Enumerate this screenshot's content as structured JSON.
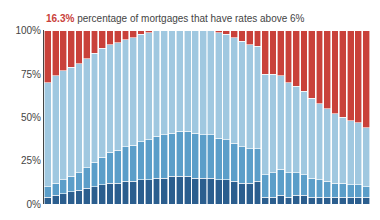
{
  "chart_data": {
    "type": "bar",
    "stacked": true,
    "grid": false,
    "tick_labels": "y",
    "annotations": [
      {
        "text": "16.3%",
        "color": "#c9413a"
      },
      {
        "text": " percentage of mortgages that have rates above 6%",
        "color": "#444444"
      }
    ],
    "categories": [
      null,
      null,
      null,
      null,
      null,
      null,
      null,
      null,
      null,
      null,
      null,
      null,
      null,
      null,
      null,
      null,
      null,
      null,
      null,
      null,
      null,
      null,
      null,
      null,
      null,
      null,
      null,
      null,
      null,
      null,
      null,
      null,
      null,
      null,
      null,
      null,
      null,
      null,
      null,
      null,
      null,
      null
    ],
    "series": [
      {
        "color": "#2b5e8e",
        "values": [
          0.04,
          0.05,
          0.06,
          0.07,
          0.08,
          0.09,
          0.1,
          0.11,
          0.12,
          0.12,
          0.13,
          0.13,
          0.14,
          0.14,
          0.15,
          0.15,
          0.16,
          0.16,
          0.16,
          0.15,
          0.15,
          0.15,
          0.14,
          0.14,
          0.13,
          0.12,
          0.12,
          0.13,
          0.04,
          0.04,
          0.05,
          0.04,
          0.05,
          0.05,
          0.04,
          0.04,
          0.04,
          0.04,
          0.04,
          0.04,
          0.04,
          0.04
        ]
      },
      {
        "color": "#5b9ec9",
        "values": [
          0.06,
          0.07,
          0.08,
          0.09,
          0.1,
          0.12,
          0.14,
          0.16,
          0.18,
          0.19,
          0.2,
          0.21,
          0.22,
          0.23,
          0.24,
          0.25,
          0.25,
          0.26,
          0.26,
          0.26,
          0.25,
          0.25,
          0.24,
          0.23,
          0.22,
          0.21,
          0.2,
          0.19,
          0.13,
          0.14,
          0.15,
          0.14,
          0.13,
          0.12,
          0.11,
          0.1,
          0.09,
          0.08,
          0.08,
          0.07,
          0.07,
          0.06
        ]
      },
      {
        "color": "#a0c8e0",
        "values": [
          0.6,
          0.62,
          0.63,
          0.63,
          0.63,
          0.63,
          0.63,
          0.63,
          0.62,
          0.62,
          0.62,
          0.62,
          0.62,
          0.62,
          0.61,
          0.6,
          0.59,
          0.58,
          0.58,
          0.59,
          0.6,
          0.6,
          0.61,
          0.61,
          0.61,
          0.61,
          0.6,
          0.59,
          0.58,
          0.57,
          0.54,
          0.52,
          0.5,
          0.48,
          0.46,
          0.44,
          0.42,
          0.4,
          0.38,
          0.37,
          0.36,
          0.34
        ]
      },
      {
        "color": "#c9413a",
        "values": [
          0.3,
          0.26,
          0.23,
          0.21,
          0.19,
          0.16,
          0.13,
          0.1,
          0.08,
          0.07,
          0.05,
          0.04,
          0.02,
          0.01,
          0.0,
          0.0,
          0.0,
          0.0,
          0.0,
          0.0,
          0.0,
          0.0,
          0.01,
          0.02,
          0.04,
          0.06,
          0.08,
          0.09,
          0.25,
          0.25,
          0.26,
          0.3,
          0.32,
          0.35,
          0.39,
          0.42,
          0.45,
          0.48,
          0.5,
          0.52,
          0.53,
          0.56
        ]
      }
    ],
    "ylim": [
      0,
      1.005
    ],
    "yticks": [
      {
        "value": 0,
        "label": "0%"
      },
      {
        "value": 0.25,
        "label": "25%"
      },
      {
        "value": 0.5,
        "label": "50%"
      },
      {
        "value": 0.75,
        "label": "75%"
      },
      {
        "value": 1.0,
        "label": "100%"
      }
    ]
  }
}
